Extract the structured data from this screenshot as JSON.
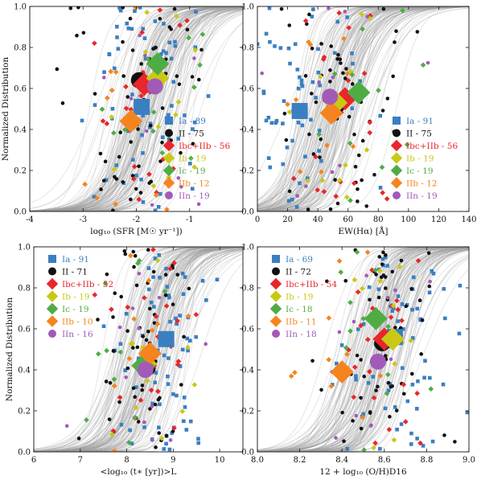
{
  "chart_data": [
    {
      "type": "scatter",
      "xlabel": "log₁₀ (SFR [M☉ yr⁻¹])",
      "ylabel": "Normalized Distribution",
      "xlim": [
        -4,
        0
      ],
      "ylim": [
        0,
        1.0
      ],
      "xticks": [
        -4,
        -3,
        -2,
        -1
      ],
      "yticks": [
        0.0,
        0.2,
        0.4,
        0.6,
        0.8,
        1.0
      ],
      "legend_position": "lower-right",
      "legend": [
        {
          "label": "Ia - 89",
          "type": "Ia"
        },
        {
          "label": "II - 75",
          "type": "II"
        },
        {
          "label": "Ibc+IIb - 56",
          "type": "Ibc+IIb"
        },
        {
          "label": "Ib - 19",
          "type": "Ib"
        },
        {
          "label": "Ic - 19",
          "type": "Ic"
        },
        {
          "label": "IIb - 12",
          "type": "IIb"
        },
        {
          "label": "IIn - 19",
          "type": "IIn"
        }
      ],
      "medians": [
        {
          "type": "Ia",
          "x": -1.9,
          "y": 0.51
        },
        {
          "type": "II",
          "x": -1.95,
          "y": 0.64
        },
        {
          "type": "Ibc+IIb",
          "x": -1.85,
          "y": 0.62
        },
        {
          "type": "Ib",
          "x": -1.6,
          "y": 0.65
        },
        {
          "type": "Ic",
          "x": -1.6,
          "y": 0.72
        },
        {
          "type": "IIb",
          "x": -2.1,
          "y": 0.44
        },
        {
          "type": "IIn",
          "x": -1.65,
          "y": 0.61
        }
      ]
    },
    {
      "type": "scatter",
      "xlabel": "EW(Hα) [Å]",
      "ylabel": "",
      "xlim": [
        0,
        140
      ],
      "ylim": [
        0,
        1.0
      ],
      "xticks": [
        0,
        20,
        40,
        60,
        80,
        100,
        120,
        140
      ],
      "yticks": [
        0.0,
        0.2,
        0.4,
        0.6,
        0.8,
        1.0
      ],
      "legend_position": "lower-right",
      "legend": [
        {
          "label": "Ia - 91",
          "type": "Ia"
        },
        {
          "label": "II - 75",
          "type": "II"
        },
        {
          "label": "Ibc+IIb - 56",
          "type": "Ibc+IIb"
        },
        {
          "label": "Ib - 19",
          "type": "Ib"
        },
        {
          "label": "Ic - 19",
          "type": "Ic"
        },
        {
          "label": "IIb - 12",
          "type": "IIb"
        },
        {
          "label": "IIn - 19",
          "type": "IIn"
        }
      ],
      "medians": [
        {
          "type": "Ia",
          "x": 28,
          "y": 0.49
        },
        {
          "type": "II",
          "x": 53,
          "y": 0.52
        },
        {
          "type": "Ibc+IIb",
          "x": 58,
          "y": 0.55
        },
        {
          "type": "Ib",
          "x": 52,
          "y": 0.53
        },
        {
          "type": "Ic",
          "x": 67,
          "y": 0.58
        },
        {
          "type": "IIb",
          "x": 49,
          "y": 0.48
        },
        {
          "type": "IIn",
          "x": 48,
          "y": 0.56
        }
      ]
    },
    {
      "type": "scatter",
      "xlabel": "<log₁₀ (t∗ [yr])>L",
      "ylabel": "Normalized Distribution",
      "xlim": [
        6,
        10.5
      ],
      "ylim": [
        0,
        1.0
      ],
      "xticks": [
        6,
        7,
        8,
        9,
        10
      ],
      "yticks": [
        0.0,
        0.2,
        0.4,
        0.6,
        0.8,
        1.0
      ],
      "legend_position": "upper-left",
      "legend": [
        {
          "label": "Ia - 91",
          "type": "Ia"
        },
        {
          "label": "II - 71",
          "type": "II"
        },
        {
          "label": "Ibc+IIb - 52",
          "type": "Ibc+IIb"
        },
        {
          "label": "Ib - 19",
          "type": "Ib"
        },
        {
          "label": "Ic - 19",
          "type": "Ic"
        },
        {
          "label": "IIb - 10",
          "type": "IIb"
        },
        {
          "label": "IIn - 16",
          "type": "IIn"
        }
      ],
      "medians": [
        {
          "type": "Ia",
          "x": 8.85,
          "y": 0.55
        },
        {
          "type": "II",
          "x": 8.45,
          "y": 0.41
        },
        {
          "type": "Ibc+IIb",
          "x": 8.4,
          "y": 0.42
        },
        {
          "type": "Ib",
          "x": 8.4,
          "y": 0.43
        },
        {
          "type": "Ic",
          "x": 8.35,
          "y": 0.42
        },
        {
          "type": "IIb",
          "x": 8.5,
          "y": 0.48
        },
        {
          "type": "IIn",
          "x": 8.4,
          "y": 0.4
        }
      ]
    },
    {
      "type": "scatter",
      "xlabel": "12 + log₁₀ (O/H)D16",
      "ylabel": "",
      "xlim": [
        8.0,
        9.0
      ],
      "ylim": [
        0,
        1.0
      ],
      "xticks": [
        8.0,
        8.2,
        8.4,
        8.6,
        8.8,
        9.0
      ],
      "yticks": [
        0.0,
        0.2,
        0.4,
        0.6,
        0.8,
        1.0
      ],
      "legend_position": "upper-left",
      "legend": [
        {
          "label": "Ia - 69",
          "type": "Ia"
        },
        {
          "label": "II - 72",
          "type": "II"
        },
        {
          "label": "Ibc+IIb - 54",
          "type": "Ibc+IIb"
        },
        {
          "label": "Ib - 19",
          "type": "Ib"
        },
        {
          "label": "Ic - 18",
          "type": "Ic"
        },
        {
          "label": "IIb - 11",
          "type": "IIb"
        },
        {
          "label": "IIn - 18",
          "type": "IIn"
        }
      ],
      "medians": [
        {
          "type": "Ia",
          "x": 8.65,
          "y": 0.56
        },
        {
          "type": "II",
          "x": 8.59,
          "y": 0.53
        },
        {
          "type": "Ibc+IIb",
          "x": 8.6,
          "y": 0.55
        },
        {
          "type": "Ib",
          "x": 8.64,
          "y": 0.55
        },
        {
          "type": "Ic",
          "x": 8.56,
          "y": 0.65
        },
        {
          "type": "IIb",
          "x": 8.4,
          "y": 0.39
        },
        {
          "type": "IIn",
          "x": 8.57,
          "y": 0.44
        }
      ]
    }
  ],
  "styles": {
    "Ia": {
      "color": "#3a7fc1",
      "marker": "square"
    },
    "II": {
      "color": "#111111",
      "marker": "circle"
    },
    "Ibc+IIb": {
      "color": "#e8262b",
      "marker": "diamond"
    },
    "Ib": {
      "color": "#c9c915",
      "marker": "diamond"
    },
    "Ic": {
      "color": "#4fac45",
      "marker": "diamond"
    },
    "IIb": {
      "color": "#f5841f",
      "marker": "diamond"
    },
    "IIn": {
      "color": "#a25ab8",
      "marker": "circle"
    },
    "background_curve": "#9a9a9a"
  }
}
